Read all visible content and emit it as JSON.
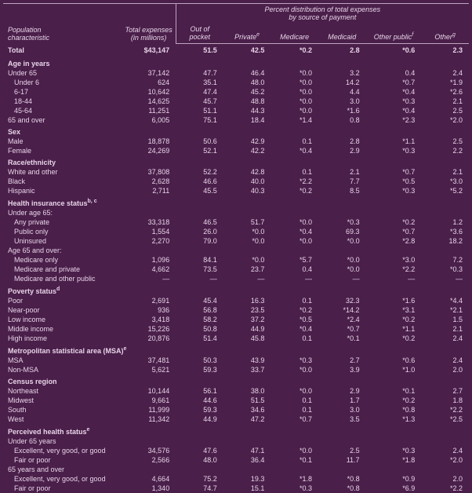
{
  "headers": {
    "pop": "Population\ncharacteristic",
    "te": "Total expenses\n(in millions)",
    "span": "Percent distribution of total expenses\nby source of payment",
    "oop": "Out of\npocket",
    "priv": "Private",
    "mcare": "Medicare",
    "mcaid": "Medicaid",
    "opub": "Other public",
    "other": "Other",
    "sup_e": "e",
    "sup_f": "f",
    "sup_g": "g",
    "sup_b": "b, c",
    "sup_d": "d"
  },
  "rows": [
    {
      "t": "total",
      "l": "Total",
      "v": [
        "$43,147",
        "51.5",
        "42.5",
        "*0.2",
        "2.8",
        "*0.6",
        "2.3"
      ]
    },
    {
      "t": "section",
      "l": "Age in years"
    },
    {
      "t": "r",
      "l": "Under 65",
      "v": [
        "37,142",
        "47.7",
        "46.4",
        "*0.0",
        "3.2",
        "0.4",
        "2.4"
      ]
    },
    {
      "t": "r",
      "i": 1,
      "l": "Under 6",
      "v": [
        "624",
        "35.1",
        "48.0",
        "*0.0",
        "14.2",
        "*0.7",
        "*1.9"
      ]
    },
    {
      "t": "r",
      "i": 1,
      "l": "6-17",
      "v": [
        "10,642",
        "47.4",
        "45.2",
        "*0.0",
        "4.4",
        "*0.4",
        "*2.6"
      ]
    },
    {
      "t": "r",
      "i": 1,
      "l": "18-44",
      "v": [
        "14,625",
        "45.7",
        "48.8",
        "*0.0",
        "3.0",
        "*0.3",
        "2.1"
      ]
    },
    {
      "t": "r",
      "i": 1,
      "l": "45-64",
      "v": [
        "11,251",
        "51.1",
        "44.3",
        "*0.0",
        "*1.6",
        "*0.4",
        "2.5"
      ]
    },
    {
      "t": "r",
      "l": "65 and over",
      "v": [
        "6,005",
        "75.1",
        "18.4",
        "*1.4",
        "0.8",
        "*2.3",
        "*2.0"
      ]
    },
    {
      "t": "section",
      "l": "Sex"
    },
    {
      "t": "r",
      "l": "Male",
      "v": [
        "18,878",
        "50.6",
        "42.9",
        "0.1",
        "2.8",
        "*1.1",
        "2.5"
      ]
    },
    {
      "t": "r",
      "l": "Female",
      "v": [
        "24,269",
        "52.1",
        "42.2",
        "*0.4",
        "2.9",
        "*0.3",
        "2.2"
      ]
    },
    {
      "t": "section",
      "l": "Race/ethnicity"
    },
    {
      "t": "r",
      "l": "White and other",
      "v": [
        "37,808",
        "52.2",
        "42.8",
        "0.1",
        "2.1",
        "*0.7",
        "2.1"
      ]
    },
    {
      "t": "r",
      "l": "Black",
      "v": [
        "2,628",
        "46.6",
        "40.0",
        "*2.2",
        "7.7",
        "*0.5",
        "*3.0"
      ]
    },
    {
      "t": "r",
      "l": "Hispanic",
      "v": [
        "2,711",
        "45.5",
        "40.3",
        "*0.2",
        "8.5",
        "*0.3",
        "*5.2"
      ]
    },
    {
      "t": "section",
      "l": "Health insurance status",
      "sup": "sup_b"
    },
    {
      "t": "r",
      "l": "Under age 65:"
    },
    {
      "t": "r",
      "i": 1,
      "l": "Any private",
      "v": [
        "33,318",
        "46.5",
        "51.7",
        "*0.0",
        "*0.3",
        "*0.2",
        "1.2"
      ]
    },
    {
      "t": "r",
      "i": 1,
      "l": "Public only",
      "v": [
        "1,554",
        "26.0",
        "*0.0",
        "*0.4",
        "69.3",
        "*0.7",
        "*3.6"
      ]
    },
    {
      "t": "r",
      "i": 1,
      "l": "Uninsured",
      "v": [
        "2,270",
        "79.0",
        "*0.0",
        "*0.0",
        "*0.0",
        "*2.8",
        "18.2"
      ]
    },
    {
      "t": "r",
      "l": "Age 65 and over:"
    },
    {
      "t": "r",
      "i": 1,
      "l": "Medicare only",
      "v": [
        "1,096",
        "84.1",
        "*0.0",
        "*5.7",
        "*0.0",
        "*3.0",
        "7.2"
      ]
    },
    {
      "t": "r",
      "i": 1,
      "l": "Medicare and private",
      "v": [
        "4,662",
        "73.5",
        "23.7",
        "0.4",
        "*0.0",
        "*2.2",
        "*0.3"
      ]
    },
    {
      "t": "r",
      "i": 1,
      "l": "Medicare and other public",
      "v": [
        "—",
        "—",
        "—",
        "—",
        "—",
        "—",
        "—"
      ]
    },
    {
      "t": "section",
      "l": "Poverty status",
      "sup": "sup_d"
    },
    {
      "t": "r",
      "l": "Poor",
      "v": [
        "2,691",
        "45.4",
        "16.3",
        "0.1",
        "32.3",
        "*1.6",
        "*4.4"
      ]
    },
    {
      "t": "r",
      "l": "Near-poor",
      "v": [
        "936",
        "56.8",
        "23.5",
        "*0.2",
        "*14.2",
        "*3.1",
        "*2.1"
      ]
    },
    {
      "t": "r",
      "l": "Low income",
      "v": [
        "3,418",
        "58.2",
        "37.2",
        "*0.5",
        "*2.4",
        "*0.2",
        "1.5"
      ]
    },
    {
      "t": "r",
      "l": "Middle income",
      "v": [
        "15,226",
        "50.8",
        "44.9",
        "*0.4",
        "*0.7",
        "*1.1",
        "2.1"
      ]
    },
    {
      "t": "r",
      "l": "High income",
      "v": [
        "20,876",
        "51.4",
        "45.8",
        "0.1",
        "*0.1",
        "*0.2",
        "2.4"
      ]
    },
    {
      "t": "section",
      "l": "Metropolitan statistical area (MSA)",
      "sup": "sup_e"
    },
    {
      "t": "r",
      "l": "MSA",
      "v": [
        "37,481",
        "50.3",
        "43.9",
        "*0.3",
        "2.7",
        "*0.6",
        "2.4"
      ]
    },
    {
      "t": "r",
      "l": "Non-MSA",
      "v": [
        "5,621",
        "59.3",
        "33.7",
        "*0.0",
        "3.9",
        "*1.0",
        "2.0"
      ]
    },
    {
      "t": "section",
      "l": "Census region"
    },
    {
      "t": "r",
      "l": "Northeast",
      "v": [
        "10,144",
        "56.1",
        "38.0",
        "*0.0",
        "2.9",
        "*0.1",
        "2.7"
      ]
    },
    {
      "t": "r",
      "l": "Midwest",
      "v": [
        "9,661",
        "44.6",
        "51.5",
        "0.1",
        "1.7",
        "*0.2",
        "1.8"
      ]
    },
    {
      "t": "r",
      "l": "South",
      "v": [
        "11,999",
        "59.3",
        "34.6",
        "0.1",
        "3.0",
        "*0.8",
        "*2.2"
      ]
    },
    {
      "t": "r",
      "l": "West",
      "v": [
        "11,342",
        "44.9",
        "47.2",
        "*0.7",
        "3.5",
        "*1.3",
        "*2.5"
      ]
    },
    {
      "t": "section",
      "l": "Perceived health status",
      "sup": "sup_e"
    },
    {
      "t": "r",
      "l": "Under 65 years"
    },
    {
      "t": "r",
      "i": 1,
      "l": "Excellent, very good, or good",
      "v": [
        "34,576",
        "47.6",
        "47.1",
        "*0.0",
        "2.5",
        "*0.3",
        "2.4"
      ]
    },
    {
      "t": "r",
      "i": 1,
      "l": "Fair or poor",
      "v": [
        "2,566",
        "48.0",
        "36.4",
        "*0.1",
        "11.7",
        "*1.8",
        "*2.0"
      ]
    },
    {
      "t": "r",
      "l": "65 years and over"
    },
    {
      "t": "r",
      "i": 1,
      "l": "Excellent, very good, or good",
      "v": [
        "4,664",
        "75.2",
        "19.3",
        "*1.8",
        "*0.8",
        "*0.9",
        "2.0"
      ]
    },
    {
      "t": "r",
      "i": 1,
      "l": "Fair or poor",
      "v": [
        "1,340",
        "74.7",
        "15.1",
        "*0.3",
        "*0.8",
        "*6.9",
        "*2.2"
      ]
    }
  ]
}
